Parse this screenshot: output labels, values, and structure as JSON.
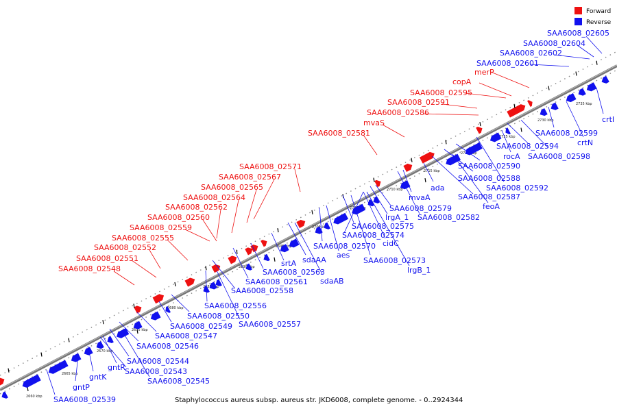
{
  "legend": {
    "forward_label": "Forward",
    "reverse_label": "Reverse"
  },
  "colors": {
    "forward": "#ee1111",
    "reverse": "#1111ee",
    "axis": "#777777"
  },
  "caption": "Staphylococcus aureus subsp. aureus str. JKD6008, complete genome. - 0..2924344",
  "ticks": [
    "2660 kbp",
    "2665 kbp",
    "2670 kbp",
    "2675 kbp",
    "2680 kbp",
    "2685 kbp",
    "2690 kbp",
    "2695 kbp",
    "2700 kbp",
    "2705 kbp",
    "2710 kbp",
    "2715 kbp",
    "2720 kbp",
    "2725 kbp",
    "2730 kbp",
    "2735 kbp"
  ],
  "forward_genes": [
    "merP",
    "copA",
    "SAA6008_02595",
    "SAA6008_02591",
    "SAA6008_02586",
    "mvaS",
    "SAA6008_02581",
    "SAA6008_02571",
    "SAA6008_02567",
    "SAA6008_02565",
    "SAA6008_02564",
    "SAA6008_02562",
    "SAA6008_02560",
    "SAA6008_02559",
    "SAA6008_02555",
    "SAA6008_02552",
    "SAA6008_02551",
    "SAA6008_02548"
  ],
  "reverse_genes": [
    "SAA6008_02605",
    "SAA6008_02604",
    "SAA6008_02602",
    "SAA6008_02601",
    "crtI",
    "SAA6008_02599",
    "crtN",
    "SAA6008_02598",
    "SAA6008_02594",
    "rocA",
    "SAA6008_02592",
    "SAA6008_02590",
    "SAA6008_02588",
    "ada",
    "SAA6008_02587",
    "feoA",
    "mvaA",
    "SAA6008_02582",
    "SAA6008_02579",
    "lrgA_1",
    "SAA6008_02575",
    "SAA6008_02574",
    "cidC",
    "SAA6008_02573",
    "lrgB_1",
    "SAA6008_02570",
    "aes",
    "sdaAA",
    "sdaAB",
    "srtA",
    "SAA6008_02563",
    "SAA6008_02561",
    "SAA6008_02558",
    "SAA6008_02556",
    "SAA6008_02550",
    "SAA6008_02557",
    "SAA6008_02549",
    "SAA6008_02547",
    "SAA6008_02546",
    "SAA6008_02544",
    "gntR",
    "SAA6008_02543",
    "SAA6008_02545",
    "gntK",
    "gntP",
    "SAA6008_02539"
  ]
}
